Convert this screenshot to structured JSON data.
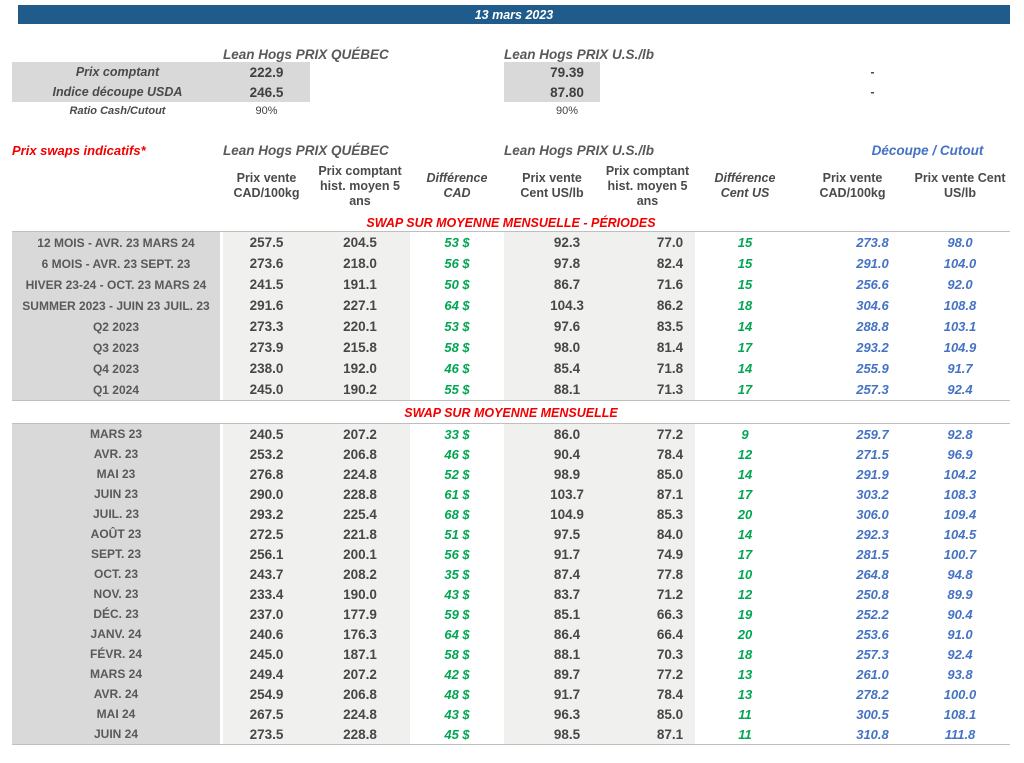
{
  "page": {
    "date_title": "13 mars 2023"
  },
  "colors": {
    "banner_blue": "#1F5C8B",
    "label_gray": "#D9D9D9",
    "cell_gray": "#F0F0EF",
    "red": "#F20000",
    "green": "#00A651",
    "blue": "#4472C4"
  },
  "spot": {
    "qc_header": "Lean Hogs PRIX QUÉBEC",
    "us_header": "Lean Hogs PRIX U.S./lb",
    "rows": [
      {
        "label": "Prix comptant",
        "qc": "222.9",
        "us": "79.39",
        "cutout_cad": "-"
      },
      {
        "label": "Indice découpe USDA",
        "qc": "246.5",
        "us": "87.80",
        "cutout_cad": "-"
      }
    ],
    "ratio": {
      "label": "Ratio Cash/Cutout",
      "qc": "90%",
      "us": "90%"
    }
  },
  "swaps": {
    "title": "Prix swaps indicatifs*",
    "qc_header": "Lean Hogs PRIX QUÉBEC",
    "us_header": "Lean Hogs PRIX U.S./lb",
    "cutout_header": "Découpe / Cutout",
    "col_headers": [
      "Prix vente CAD/100kg",
      "Prix comptant hist. moyen 5 ans",
      "Différence CAD",
      "Prix vente Cent US/lb",
      "Prix comptant hist. moyen 5 ans",
      "Différence Cent US",
      "Prix vente CAD/100kg",
      "Prix vente Cent US/lb"
    ]
  },
  "periods_table": {
    "title": "SWAP SUR MOYENNE MENSUELLE - PÉRIODES",
    "rows": [
      {
        "label": "12 MOIS - AVR. 23 MARS 24",
        "qc_sell": "257.5",
        "qc_hist": "204.5",
        "diff_cad": "53 $",
        "us_sell": "92.3",
        "us_hist": "77.0",
        "diff_us": "15",
        "cutout_cad": "273.8",
        "cutout_us": "98.0"
      },
      {
        "label": "6 MOIS - AVR. 23 SEPT. 23",
        "qc_sell": "273.6",
        "qc_hist": "218.0",
        "diff_cad": "56 $",
        "us_sell": "97.8",
        "us_hist": "82.4",
        "diff_us": "15",
        "cutout_cad": "291.0",
        "cutout_us": "104.0"
      },
      {
        "label": "HIVER 23-24 -  OCT. 23 MARS 24",
        "qc_sell": "241.5",
        "qc_hist": "191.1",
        "diff_cad": "50 $",
        "us_sell": "86.7",
        "us_hist": "71.6",
        "diff_us": "15",
        "cutout_cad": "256.6",
        "cutout_us": "92.0"
      },
      {
        "label": "SUMMER 2023 - JUIN 23 JUIL. 23",
        "qc_sell": "291.6",
        "qc_hist": "227.1",
        "diff_cad": "64 $",
        "us_sell": "104.3",
        "us_hist": "86.2",
        "diff_us": "18",
        "cutout_cad": "304.6",
        "cutout_us": "108.8"
      },
      {
        "label": "Q2 2023",
        "qc_sell": "273.3",
        "qc_hist": "220.1",
        "diff_cad": "53 $",
        "us_sell": "97.6",
        "us_hist": "83.5",
        "diff_us": "14",
        "cutout_cad": "288.8",
        "cutout_us": "103.1"
      },
      {
        "label": "Q3 2023",
        "qc_sell": "273.9",
        "qc_hist": "215.8",
        "diff_cad": "58 $",
        "us_sell": "98.0",
        "us_hist": "81.4",
        "diff_us": "17",
        "cutout_cad": "293.2",
        "cutout_us": "104.9"
      },
      {
        "label": "Q4 2023",
        "qc_sell": "238.0",
        "qc_hist": "192.0",
        "diff_cad": "46 $",
        "us_sell": "85.4",
        "us_hist": "71.8",
        "diff_us": "14",
        "cutout_cad": "255.9",
        "cutout_us": "91.7"
      },
      {
        "label": "Q1 2024",
        "qc_sell": "245.0",
        "qc_hist": "190.2",
        "diff_cad": "55 $",
        "us_sell": "88.1",
        "us_hist": "71.3",
        "diff_us": "17",
        "cutout_cad": "257.3",
        "cutout_us": "92.4"
      }
    ]
  },
  "monthly_table": {
    "title": "SWAP SUR MOYENNE MENSUELLE",
    "rows": [
      {
        "label": "MARS 23",
        "qc_sell": "240.5",
        "qc_hist": "207.2",
        "diff_cad": "33 $",
        "us_sell": "86.0",
        "us_hist": "77.2",
        "diff_us": "9",
        "cutout_cad": "259.7",
        "cutout_us": "92.8"
      },
      {
        "label": "AVR. 23",
        "qc_sell": "253.2",
        "qc_hist": "206.8",
        "diff_cad": "46 $",
        "us_sell": "90.4",
        "us_hist": "78.4",
        "diff_us": "12",
        "cutout_cad": "271.5",
        "cutout_us": "96.9"
      },
      {
        "label": "MAI 23",
        "qc_sell": "276.8",
        "qc_hist": "224.8",
        "diff_cad": "52 $",
        "us_sell": "98.9",
        "us_hist": "85.0",
        "diff_us": "14",
        "cutout_cad": "291.9",
        "cutout_us": "104.2"
      },
      {
        "label": "JUIN 23",
        "qc_sell": "290.0",
        "qc_hist": "228.8",
        "diff_cad": "61 $",
        "us_sell": "103.7",
        "us_hist": "87.1",
        "diff_us": "17",
        "cutout_cad": "303.2",
        "cutout_us": "108.3"
      },
      {
        "label": "JUIL. 23",
        "qc_sell": "293.2",
        "qc_hist": "225.4",
        "diff_cad": "68 $",
        "us_sell": "104.9",
        "us_hist": "85.3",
        "diff_us": "20",
        "cutout_cad": "306.0",
        "cutout_us": "109.4"
      },
      {
        "label": "AOÛT 23",
        "qc_sell": "272.5",
        "qc_hist": "221.8",
        "diff_cad": "51 $",
        "us_sell": "97.5",
        "us_hist": "84.0",
        "diff_us": "14",
        "cutout_cad": "292.3",
        "cutout_us": "104.5"
      },
      {
        "label": "SEPT. 23",
        "qc_sell": "256.1",
        "qc_hist": "200.1",
        "diff_cad": "56 $",
        "us_sell": "91.7",
        "us_hist": "74.9",
        "diff_us": "17",
        "cutout_cad": "281.5",
        "cutout_us": "100.7"
      },
      {
        "label": "OCT. 23",
        "qc_sell": "243.7",
        "qc_hist": "208.2",
        "diff_cad": "35 $",
        "us_sell": "87.4",
        "us_hist": "77.8",
        "diff_us": "10",
        "cutout_cad": "264.8",
        "cutout_us": "94.8"
      },
      {
        "label": "NOV. 23",
        "qc_sell": "233.4",
        "qc_hist": "190.0",
        "diff_cad": "43 $",
        "us_sell": "83.7",
        "us_hist": "71.2",
        "diff_us": "12",
        "cutout_cad": "250.8",
        "cutout_us": "89.9"
      },
      {
        "label": "DÉC. 23",
        "qc_sell": "237.0",
        "qc_hist": "177.9",
        "diff_cad": "59 $",
        "us_sell": "85.1",
        "us_hist": "66.3",
        "diff_us": "19",
        "cutout_cad": "252.2",
        "cutout_us": "90.4"
      },
      {
        "label": "JANV. 24",
        "qc_sell": "240.6",
        "qc_hist": "176.3",
        "diff_cad": "64 $",
        "us_sell": "86.4",
        "us_hist": "66.4",
        "diff_us": "20",
        "cutout_cad": "253.6",
        "cutout_us": "91.0"
      },
      {
        "label": "FÉVR. 24",
        "qc_sell": "245.0",
        "qc_hist": "187.1",
        "diff_cad": "58 $",
        "us_sell": "88.1",
        "us_hist": "70.3",
        "diff_us": "18",
        "cutout_cad": "257.3",
        "cutout_us": "92.4"
      },
      {
        "label": "MARS 24",
        "qc_sell": "249.4",
        "qc_hist": "207.2",
        "diff_cad": "42 $",
        "us_sell": "89.7",
        "us_hist": "77.2",
        "diff_us": "13",
        "cutout_cad": "261.0",
        "cutout_us": "93.8"
      },
      {
        "label": "AVR. 24",
        "qc_sell": "254.9",
        "qc_hist": "206.8",
        "diff_cad": "48 $",
        "us_sell": "91.7",
        "us_hist": "78.4",
        "diff_us": "13",
        "cutout_cad": "278.2",
        "cutout_us": "100.0"
      },
      {
        "label": "MAI 24",
        "qc_sell": "267.5",
        "qc_hist": "224.8",
        "diff_cad": "43 $",
        "us_sell": "96.3",
        "us_hist": "85.0",
        "diff_us": "11",
        "cutout_cad": "300.5",
        "cutout_us": "108.1"
      },
      {
        "label": "JUIN 24",
        "qc_sell": "273.5",
        "qc_hist": "228.8",
        "diff_cad": "45 $",
        "us_sell": "98.5",
        "us_hist": "87.1",
        "diff_us": "11",
        "cutout_cad": "310.8",
        "cutout_us": "111.8"
      }
    ]
  }
}
